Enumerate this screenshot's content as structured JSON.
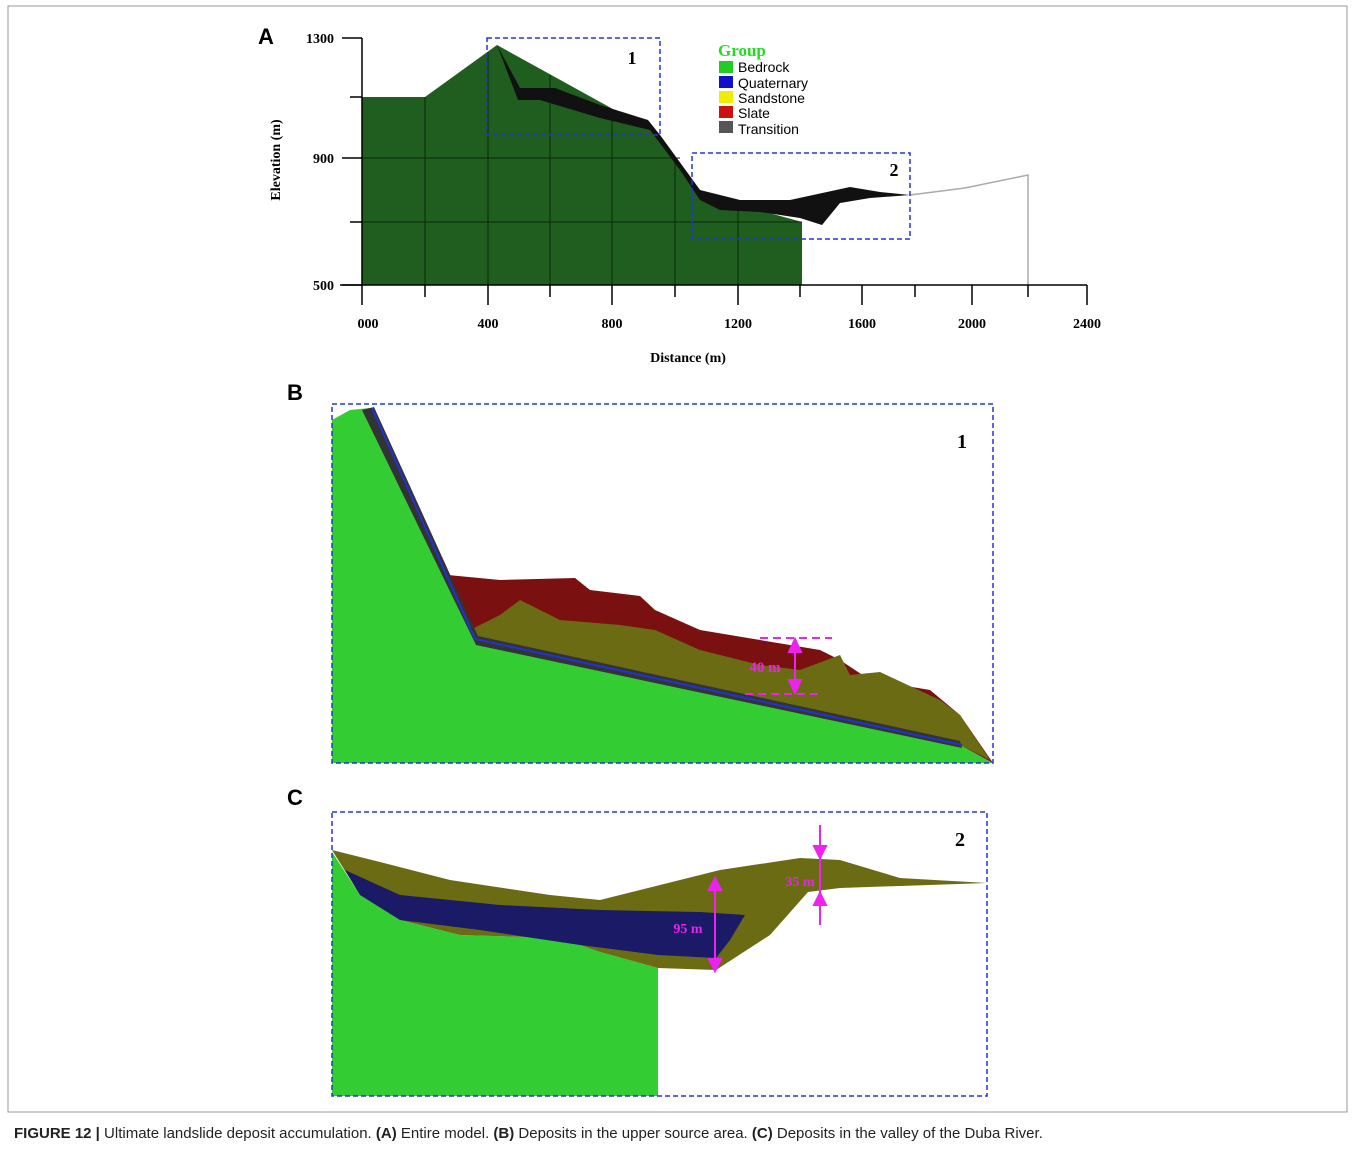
{
  "panel_a": {
    "label": "A",
    "y_axis_label": "Elevation (m)",
    "x_axis_label": "Distance (m)",
    "y_tick_labels": [
      "1300",
      "900",
      "500"
    ],
    "x_tick_labels": [
      "000",
      "400",
      "800",
      "1200",
      "1600",
      "2000",
      "2400"
    ],
    "box_labels": [
      "1",
      "2"
    ],
    "legend": {
      "title": "Group",
      "items": [
        "Bedrock",
        "Quaternary",
        "Sandstone",
        "Slate",
        "Transition"
      ]
    }
  },
  "panel_b": {
    "label": "B",
    "box_label": "1",
    "annotation": "40 m"
  },
  "panel_c": {
    "label": "C",
    "box_label": "2",
    "annotations": [
      "95 m",
      "35 m"
    ]
  },
  "caption": {
    "parts": [
      "FIGURE 12 |",
      " Ultimate landslide deposit accumulation. ",
      "(A)",
      " Entire model. ",
      "(B)",
      " Deposits in the upper source area. ",
      "(C)",
      " Deposits in the valley of the Duba River."
    ]
  }
}
